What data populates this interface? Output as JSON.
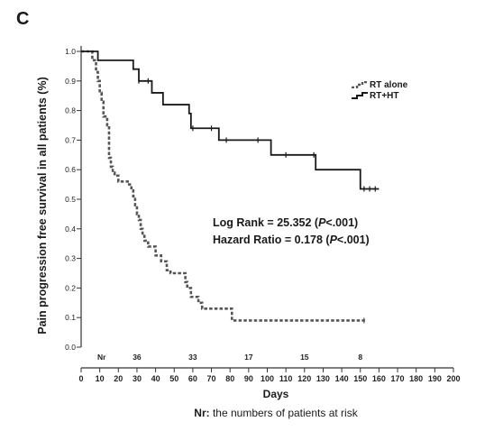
{
  "panel_label": "C",
  "chart_data": {
    "type": "line",
    "ylabel": "Pain progression free survival in all patients (%)",
    "xlabel": "Days",
    "xlim": [
      0,
      200
    ],
    "ylim": [
      0,
      1.0
    ],
    "x_ticks": [
      0,
      10,
      20,
      30,
      40,
      50,
      60,
      70,
      80,
      90,
      100,
      110,
      120,
      130,
      140,
      150,
      160,
      170,
      180,
      190,
      200
    ],
    "y_ticks": [
      "0.0",
      "0.1",
      "0.2",
      "0.3",
      "0.4",
      "0.5",
      "0.6",
      "0.7",
      "0.8",
      "0.9",
      "1.0"
    ],
    "grid": false,
    "legend_position": "top-right",
    "series": [
      {
        "name": "RT alone",
        "color": "#555555",
        "style": "dashed",
        "steps": [
          [
            0,
            1.0
          ],
          [
            6,
            0.97
          ],
          [
            8,
            0.93
          ],
          [
            9,
            0.9
          ],
          [
            10,
            0.86
          ],
          [
            11,
            0.83
          ],
          [
            12,
            0.78
          ],
          [
            14,
            0.75
          ],
          [
            15,
            0.64
          ],
          [
            16,
            0.61
          ],
          [
            17,
            0.59
          ],
          [
            18,
            0.58
          ],
          [
            20,
            0.56
          ],
          [
            25,
            0.55
          ],
          [
            27,
            0.53
          ],
          [
            28,
            0.51
          ],
          [
            29,
            0.48
          ],
          [
            30,
            0.45
          ],
          [
            31,
            0.43
          ],
          [
            32,
            0.4
          ],
          [
            33,
            0.38
          ],
          [
            34,
            0.36
          ],
          [
            36,
            0.34
          ],
          [
            40,
            0.31
          ],
          [
            43,
            0.29
          ],
          [
            46,
            0.26
          ],
          [
            48,
            0.25
          ],
          [
            56,
            0.22
          ],
          [
            57,
            0.2
          ],
          [
            59,
            0.17
          ],
          [
            63,
            0.15
          ],
          [
            65,
            0.13
          ],
          [
            81,
            0.09
          ]
        ],
        "end_x": 153,
        "censor_x": [
          152
        ]
      },
      {
        "name": "RT+HT",
        "color": "#1a1a1a",
        "style": "solid",
        "steps": [
          [
            0,
            1.0
          ],
          [
            9,
            0.97
          ],
          [
            28,
            0.94
          ],
          [
            31,
            0.9
          ],
          [
            38,
            0.86
          ],
          [
            44,
            0.82
          ],
          [
            58,
            0.79
          ],
          [
            59,
            0.74
          ],
          [
            74,
            0.7
          ],
          [
            102,
            0.65
          ],
          [
            126,
            0.6
          ],
          [
            150,
            0.535
          ]
        ],
        "end_x": 160,
        "censor_x": [
          31,
          36,
          60,
          70,
          78,
          95,
          110,
          125,
          152,
          155,
          158
        ]
      }
    ],
    "annotations": [
      {
        "text": "Log Rank = 25.352 (",
        "italic": "P",
        "after": "<.001)"
      },
      {
        "text": "Hazard Ratio = 0.178 (",
        "italic": "P",
        "after": "<.001)"
      }
    ],
    "risk_table": {
      "label": "Nr",
      "entries": [
        {
          "x": 30,
          "value": "36"
        },
        {
          "x": 60,
          "value": "33"
        },
        {
          "x": 90,
          "value": "17"
        },
        {
          "x": 120,
          "value": "15"
        },
        {
          "x": 150,
          "value": "8"
        }
      ]
    },
    "footnote": {
      "bold": "Nr:",
      "text": " the numbers of patients at risk"
    }
  }
}
